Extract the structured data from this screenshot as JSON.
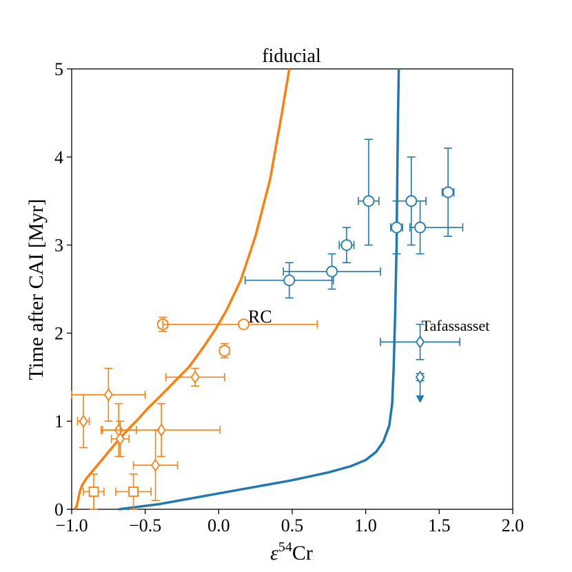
{
  "chart_data": {
    "type": "scatter",
    "title": "fiducial",
    "xlabel": "ε⁵⁴Cr",
    "xlabel_parts": {
      "symbol": "ε",
      "sup": "54",
      "rest": "Cr"
    },
    "ylabel": "Time after CAI [Myr]",
    "xlim": [
      -1.0,
      2.0
    ],
    "ylim": [
      0,
      5
    ],
    "xticks": [
      -1.0,
      -0.5,
      0.0,
      0.5,
      1.0,
      1.5,
      2.0
    ],
    "xtick_labels": [
      "−1.0",
      "−0.5",
      "0.0",
      "0.5",
      "1.0",
      "1.5",
      "2.0"
    ],
    "yticks": [
      0,
      1,
      2,
      3,
      4,
      5
    ],
    "ytick_labels": [
      "0",
      "1",
      "2",
      "3",
      "4",
      "5"
    ],
    "colors": {
      "orange": "#ff7f0e",
      "blue": "#1f77b4"
    },
    "annotations": [
      {
        "text": "RC",
        "x": 0.2,
        "y": 2.2,
        "size": "large"
      },
      {
        "text": "Tafassasset",
        "x": 1.38,
        "y": 2.09,
        "size": "small"
      }
    ],
    "curves": [
      {
        "name": "orange-curve",
        "color": "#ff7f0e",
        "points": [
          [
            -0.98,
            0
          ],
          [
            -0.965,
            0.04
          ],
          [
            -0.955,
            0.12
          ],
          [
            -0.945,
            0.2
          ],
          [
            -0.93,
            0.27
          ],
          [
            -0.9,
            0.35
          ],
          [
            -0.85,
            0.45
          ],
          [
            -0.8,
            0.55
          ],
          [
            -0.75,
            0.65
          ],
          [
            -0.7,
            0.75
          ],
          [
            -0.62,
            0.9
          ],
          [
            -0.55,
            1.02
          ],
          [
            -0.48,
            1.15
          ],
          [
            -0.4,
            1.28
          ],
          [
            -0.3,
            1.45
          ],
          [
            -0.2,
            1.62
          ],
          [
            -0.1,
            1.85
          ],
          [
            -0.02,
            2.05
          ],
          [
            0.05,
            2.25
          ],
          [
            0.15,
            2.6
          ],
          [
            0.25,
            3.1
          ],
          [
            0.35,
            3.75
          ],
          [
            0.43,
            4.5
          ],
          [
            0.48,
            5.0
          ]
        ]
      },
      {
        "name": "blue-curve",
        "color": "#1f77b4",
        "points": [
          [
            -0.68,
            0
          ],
          [
            -0.4,
            0.06
          ],
          [
            -0.1,
            0.15
          ],
          [
            0.2,
            0.24
          ],
          [
            0.5,
            0.33
          ],
          [
            0.75,
            0.42
          ],
          [
            0.9,
            0.49
          ],
          [
            1.0,
            0.56
          ],
          [
            1.07,
            0.65
          ],
          [
            1.12,
            0.77
          ],
          [
            1.16,
            0.95
          ],
          [
            1.18,
            1.2
          ],
          [
            1.19,
            1.6
          ],
          [
            1.2,
            2.2
          ],
          [
            1.21,
            3.0
          ],
          [
            1.215,
            3.8
          ],
          [
            1.22,
            4.5
          ],
          [
            1.225,
            5.0
          ]
        ]
      }
    ],
    "series": [
      {
        "name": "orange-points",
        "color": "#ff7f0e",
        "points": [
          {
            "x": -0.38,
            "y": 2.1,
            "xerr": [
              0.03,
              0.03
            ],
            "yerr": [
              0.08,
              0.08
            ],
            "marker": "circle"
          },
          {
            "x": 0.17,
            "y": 2.1,
            "xerr": [
              0.55,
              0.5
            ],
            "yerr": [
              0,
              0
            ],
            "marker": "circle"
          },
          {
            "x": 0.04,
            "y": 1.8,
            "xerr": [
              0.03,
              0.03
            ],
            "yerr": [
              0.08,
              0.08
            ],
            "marker": "circle"
          },
          {
            "x": -0.16,
            "y": 1.5,
            "xerr": [
              0.2,
              0.2
            ],
            "yerr": [
              0.1,
              0.1
            ],
            "marker": "diamond"
          },
          {
            "x": -0.75,
            "y": 1.3,
            "xerr": [
              0.25,
              0.25
            ],
            "yerr": [
              0.3,
              0.3
            ],
            "marker": "diamond"
          },
          {
            "x": -0.92,
            "y": 1.0,
            "xerr": [
              0.04,
              0.04
            ],
            "yerr": [
              0.3,
              0.3
            ],
            "marker": "diamond"
          },
          {
            "x": -0.68,
            "y": 0.9,
            "xerr": [
              0.12,
              0.12
            ],
            "yerr": [
              0.3,
              0.3
            ],
            "marker": "diamond"
          },
          {
            "x": -0.67,
            "y": 0.8,
            "xerr": [
              0.06,
              0.06
            ],
            "yerr": [
              0.2,
              0.2
            ],
            "marker": "diamond"
          },
          {
            "x": -0.39,
            "y": 0.9,
            "xerr": [
              0.4,
              0.4
            ],
            "yerr": [
              0.3,
              0.3
            ],
            "marker": "diamond"
          },
          {
            "x": -0.43,
            "y": 0.5,
            "xerr": [
              0.15,
              0.15
            ],
            "yerr": [
              0.4,
              0.4
            ],
            "marker": "diamond"
          },
          {
            "x": -0.85,
            "y": 0.2,
            "xerr": [
              0.07,
              0.07
            ],
            "yerr": [
              0.2,
              0.2
            ],
            "marker": "square"
          },
          {
            "x": -0.58,
            "y": 0.2,
            "xerr": [
              0.12,
              0.12
            ],
            "yerr": [
              0.2,
              0.2
            ],
            "marker": "square"
          }
        ]
      },
      {
        "name": "blue-points",
        "color": "#1f77b4",
        "points": [
          {
            "x": 0.48,
            "y": 2.6,
            "xerr": [
              0.3,
              0.3
            ],
            "yerr": [
              0.2,
              0.2
            ],
            "marker": "circle"
          },
          {
            "x": 0.77,
            "y": 2.7,
            "xerr": [
              0.33,
              0.33
            ],
            "yerr": [
              0.2,
              0.2
            ],
            "marker": "circle"
          },
          {
            "x": 0.87,
            "y": 3.0,
            "xerr": [
              0.05,
              0.05
            ],
            "yerr": [
              0.2,
              0.2
            ],
            "marker": "circle"
          },
          {
            "x": 1.02,
            "y": 3.5,
            "xerr": [
              0.07,
              0.07
            ],
            "yerr": [
              0.5,
              0.7
            ],
            "marker": "circle"
          },
          {
            "x": 1.21,
            "y": 3.2,
            "xerr": [
              0.04,
              0.04
            ],
            "yerr": [
              0.3,
              0.3
            ],
            "marker": "circle"
          },
          {
            "x": 1.31,
            "y": 3.5,
            "xerr": [
              0.1,
              0.1
            ],
            "yerr": [
              0.5,
              0.5
            ],
            "marker": "circle"
          },
          {
            "x": 1.37,
            "y": 3.2,
            "xerr": [
              0.07,
              0.29
            ],
            "yerr": [
              0.3,
              0.3
            ],
            "marker": "circle"
          },
          {
            "x": 1.56,
            "y": 3.6,
            "xerr": [
              0.04,
              0.04
            ],
            "yerr": [
              0.5,
              0.5
            ],
            "marker": "circle"
          },
          {
            "x": 1.37,
            "y": 1.9,
            "xerr": [
              0.27,
              0.27
            ],
            "yerr": [
              0.2,
              0.2
            ],
            "marker": "diamond"
          },
          {
            "x": 1.37,
            "y": 1.5,
            "xerr": [
              0,
              0
            ],
            "yerr": [
              0.04,
              0.04
            ],
            "marker": "diamond",
            "upper_limit_arrow": true
          }
        ]
      }
    ]
  }
}
